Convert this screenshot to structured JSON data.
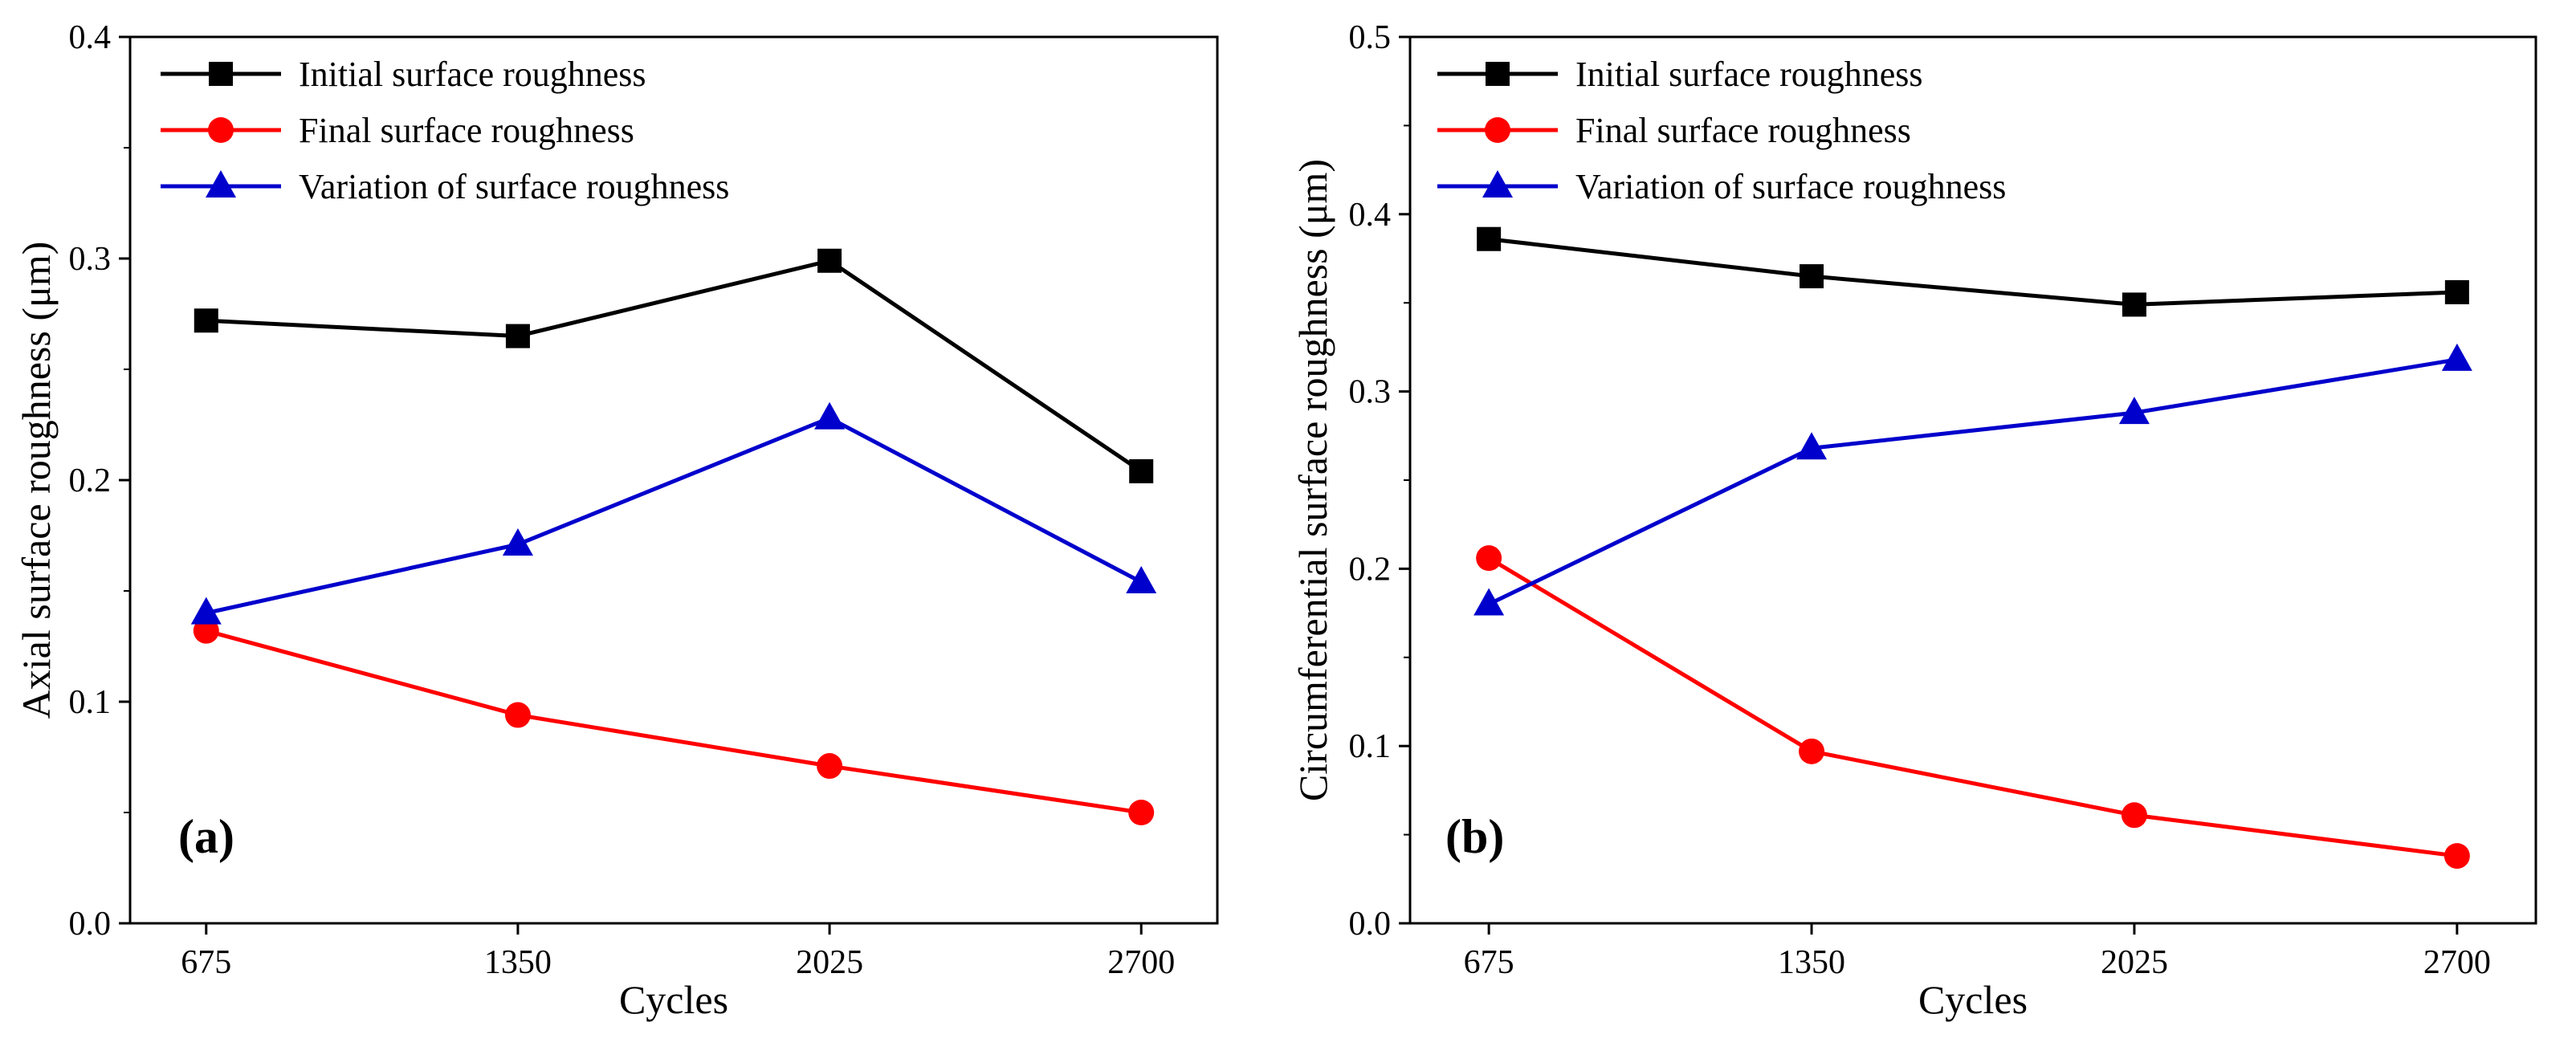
{
  "chart_data": [
    {
      "type": "line",
      "panel_label": "(a)",
      "title": "",
      "xlabel": "Cycles",
      "ylabel": "Axial surface roughness (μm)",
      "categories": [
        "675",
        "1350",
        "2025",
        "2700"
      ],
      "yticks": [
        "0.0",
        "0.1",
        "0.2",
        "0.3",
        "0.4"
      ],
      "ylim": [
        0,
        0.4
      ],
      "grid": false,
      "legend_position": "top-left",
      "series": [
        {
          "name": "Initial surface roughness",
          "marker": "square",
          "color": "#000000",
          "values": [
            0.272,
            0.265,
            0.299,
            0.204
          ]
        },
        {
          "name": "Final surface roughness",
          "marker": "circle",
          "color": "#ff0000",
          "values": [
            0.132,
            0.094,
            0.071,
            0.05
          ]
        },
        {
          "name": "Variation of surface roughness",
          "marker": "triangle",
          "color": "#0000cc",
          "values": [
            0.14,
            0.171,
            0.228,
            0.154
          ]
        }
      ]
    },
    {
      "type": "line",
      "panel_label": "(b)",
      "title": "",
      "xlabel": "Cycles",
      "ylabel": "Circumferential surface roughness (μm)",
      "categories": [
        "675",
        "1350",
        "2025",
        "2700"
      ],
      "yticks": [
        "0.0",
        "0.1",
        "0.2",
        "0.3",
        "0.4",
        "0.5"
      ],
      "ylim": [
        0,
        0.5
      ],
      "grid": false,
      "legend_position": "top-left",
      "series": [
        {
          "name": "Initial surface roughness",
          "marker": "square",
          "color": "#000000",
          "values": [
            0.386,
            0.365,
            0.349,
            0.356
          ]
        },
        {
          "name": "Final surface roughness",
          "marker": "circle",
          "color": "#ff0000",
          "values": [
            0.206,
            0.097,
            0.061,
            0.038
          ]
        },
        {
          "name": "Variation of surface roughness",
          "marker": "triangle",
          "color": "#0000cc",
          "values": [
            0.18,
            0.268,
            0.288,
            0.318
          ]
        }
      ]
    }
  ]
}
